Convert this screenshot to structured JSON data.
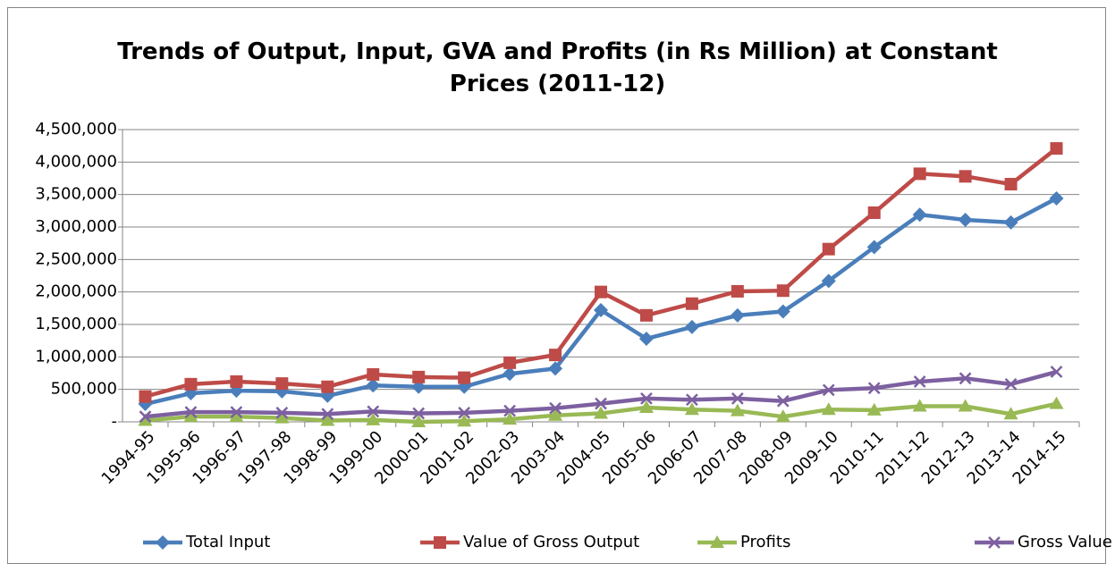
{
  "chart_data": {
    "type": "line",
    "title": "Trends of Output, Input, GVA and Profits (in Rs Million) at Constant Prices (2011-12)",
    "categories": [
      "1994-95",
      "1995-96",
      "1996-97",
      "1997-98",
      "1998-99",
      "1999-00",
      "2000-01",
      "2001-02",
      "2002-03",
      "2003-04",
      "2004-05",
      "2005-06",
      "2006-07",
      "2007-08",
      "2008-09",
      "2009-10",
      "2010-11",
      "2011-12",
      "2012-13",
      "2013-14",
      "2014-15"
    ],
    "series": [
      {
        "name": "Total Input",
        "color": "#4a7ebb",
        "marker": "diamond",
        "values": [
          275000,
          440000,
          480000,
          470000,
          400000,
          560000,
          540000,
          540000,
          740000,
          820000,
          1720000,
          1280000,
          1460000,
          1640000,
          1700000,
          2170000,
          2690000,
          3190000,
          3110000,
          3070000,
          3440000
        ]
      },
      {
        "name": "Value of Gross Output",
        "color": "#be4b48",
        "marker": "square",
        "values": [
          390000,
          580000,
          620000,
          590000,
          540000,
          730000,
          690000,
          680000,
          910000,
          1030000,
          2000000,
          1640000,
          1820000,
          2010000,
          2020000,
          2660000,
          3220000,
          3820000,
          3780000,
          3660000,
          4210000
        ]
      },
      {
        "name": "Profits",
        "color": "#98b954",
        "marker": "triangle",
        "values": [
          20000,
          80000,
          80000,
          60000,
          20000,
          30000,
          0,
          10000,
          40000,
          100000,
          130000,
          220000,
          190000,
          170000,
          80000,
          190000,
          180000,
          240000,
          240000,
          120000,
          280000
        ]
      },
      {
        "name": "Gross Value Added",
        "color": "#7d60a0",
        "marker": "x",
        "values": [
          80000,
          150000,
          150000,
          140000,
          120000,
          160000,
          130000,
          140000,
          170000,
          210000,
          280000,
          360000,
          340000,
          360000,
          320000,
          490000,
          520000,
          620000,
          670000,
          580000,
          770000
        ]
      }
    ],
    "ylim": [
      0,
      4500000
    ],
    "yticks": [
      {
        "value": 0,
        "label": "-"
      },
      {
        "value": 500000,
        "label": "500,000"
      },
      {
        "value": 1000000,
        "label": "1,000,000"
      },
      {
        "value": 1500000,
        "label": "1,500,000"
      },
      {
        "value": 2000000,
        "label": "2,000,000"
      },
      {
        "value": 2500000,
        "label": "2,500,000"
      },
      {
        "value": 3000000,
        "label": "3,000,000"
      },
      {
        "value": 3500000,
        "label": "3,500,000"
      },
      {
        "value": 4000000,
        "label": "4,000,000"
      },
      {
        "value": 4500000,
        "label": "4,500,000"
      }
    ],
    "grid": true,
    "legend": "bottom"
  }
}
